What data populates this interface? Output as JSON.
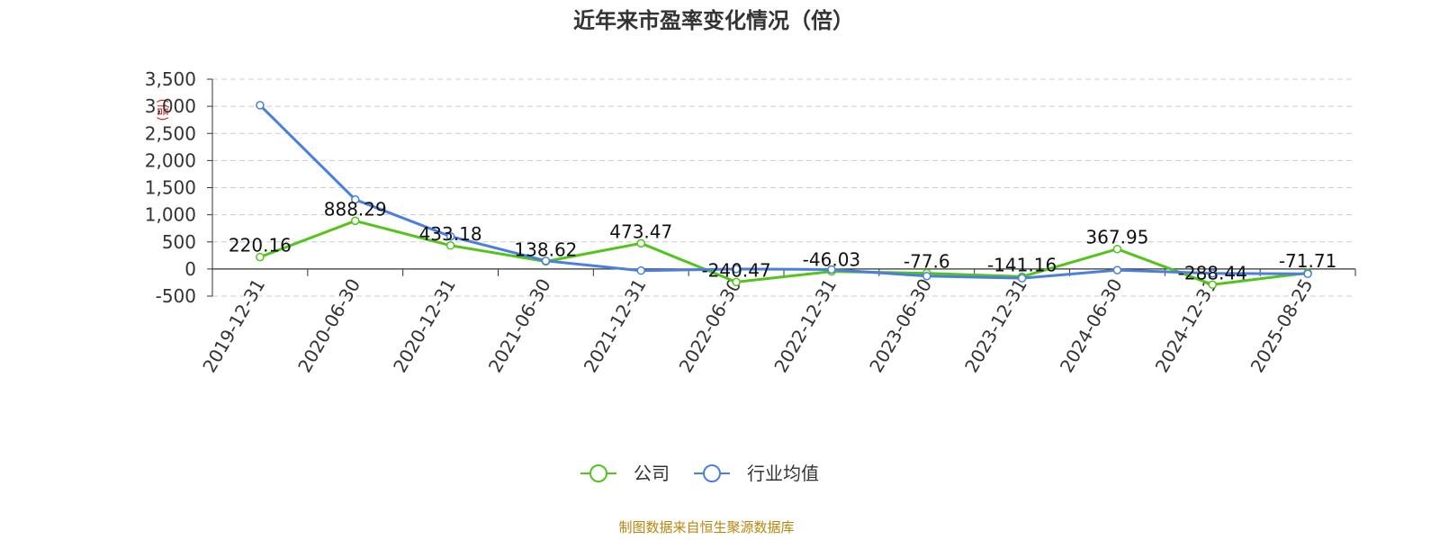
{
  "chart_data": {
    "type": "line",
    "title": "近年来市盈率变化情况（倍）",
    "ylabel": "(倍)",
    "categories": [
      "2019-12-31",
      "2020-06-30",
      "2020-12-31",
      "2021-06-30",
      "2021-12-31",
      "2022-06-30",
      "2022-12-31",
      "2023-06-30",
      "2023-12-31",
      "2024-06-30",
      "2024-12-31",
      "2025-08-25"
    ],
    "ylim": [
      -500,
      3500
    ],
    "yticks": [
      3500,
      3000,
      2500,
      2000,
      1500,
      1000,
      500,
      0,
      -500
    ],
    "ytick_labels": [
      "3,500",
      "3,000",
      "2,500",
      "2,000",
      "1,500",
      "1,000",
      "500",
      "0",
      "-500"
    ],
    "grid": true,
    "legend_position": "bottom",
    "series": [
      {
        "name": "公司",
        "color": "#52c41a",
        "values": [
          220.16,
          888.29,
          433.18,
          138.62,
          473.47,
          -240.47,
          -46.03,
          -77.6,
          -141.16,
          367.95,
          -288.44,
          -71.71
        ],
        "labels": [
          "220.16",
          "888.29",
          "433.18",
          "138.62",
          "473.47",
          "-240.47",
          "-46.03",
          "-77.6",
          "-141.16",
          "367.95",
          "-288.44",
          "-71.71"
        ]
      },
      {
        "name": "行业均值",
        "color": "#4a7fe0",
        "values": [
          3020,
          1280,
          600,
          150,
          -30,
          0,
          -10,
          -130,
          -170,
          -20,
          -80,
          -90
        ]
      }
    ]
  },
  "footer": {
    "source": "制图数据来自恒生聚源数据库"
  }
}
